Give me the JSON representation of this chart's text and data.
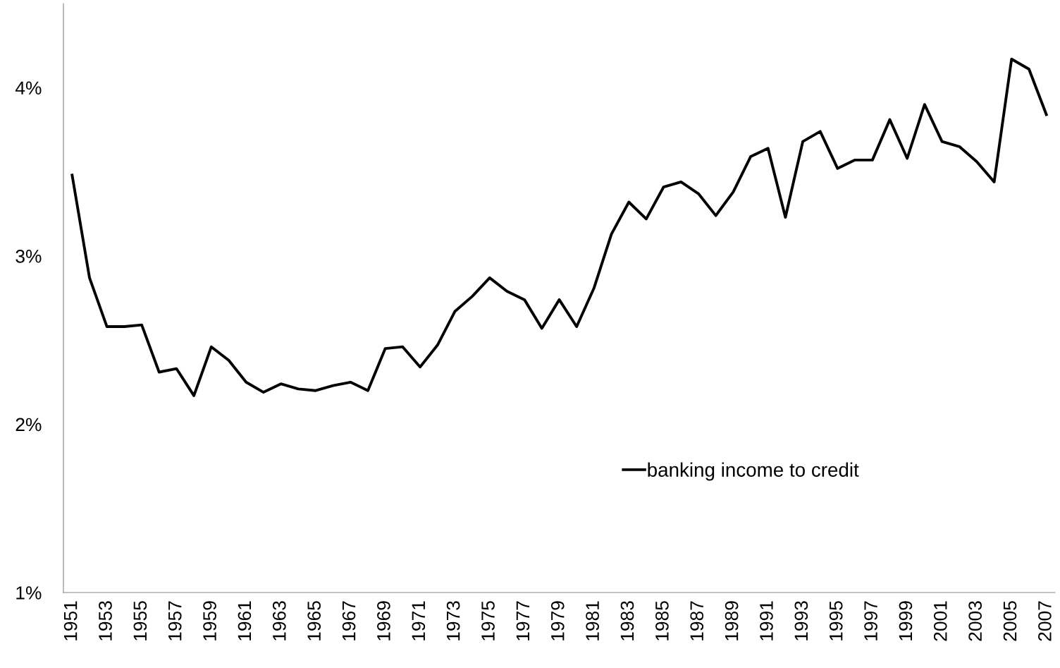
{
  "chart_data": {
    "type": "line",
    "categories": [
      "1951",
      null,
      "1953",
      null,
      "1955",
      null,
      "1957",
      null,
      "1959",
      null,
      "1961",
      null,
      "1963",
      null,
      "1965",
      null,
      "1967",
      null,
      "1969",
      null,
      "1971",
      null,
      "1973",
      null,
      "1975",
      null,
      "1977",
      null,
      "1979",
      null,
      "1981",
      null,
      "1983",
      null,
      "1985",
      null,
      "1987",
      null,
      "1989",
      null,
      "1991",
      null,
      "1993",
      null,
      "1995",
      null,
      "1997",
      null,
      "1999",
      null,
      "2001",
      null,
      "2003",
      null,
      "2005",
      null,
      "2007"
    ],
    "series": [
      {
        "name": "banking income to credit",
        "color": "#000000",
        "values": [
          3.48,
          2.87,
          2.58,
          2.58,
          2.59,
          2.31,
          2.33,
          2.17,
          2.46,
          2.38,
          2.25,
          2.19,
          2.24,
          2.21,
          2.2,
          2.23,
          2.25,
          2.2,
          2.45,
          2.46,
          2.34,
          2.47,
          2.67,
          2.76,
          2.87,
          2.79,
          2.74,
          2.57,
          2.74,
          2.58,
          2.81,
          3.13,
          3.32,
          3.22,
          3.41,
          3.44,
          3.37,
          3.24,
          3.38,
          3.59,
          3.64,
          3.23,
          3.68,
          3.74,
          3.52,
          3.57,
          3.57,
          3.81,
          3.58,
          3.9,
          3.68,
          3.65,
          3.56,
          3.44,
          4.17,
          4.11,
          3.84
        ]
      }
    ],
    "ylim": [
      1,
      4.5
    ],
    "yticks": [
      {
        "value": 1,
        "label": "1%"
      },
      {
        "value": 2,
        "label": "2%"
      },
      {
        "value": 3,
        "label": "3%"
      },
      {
        "value": 4,
        "label": "4%"
      }
    ],
    "legend": "bottom right",
    "grid": false,
    "marker": "none",
    "line_style": "solid"
  }
}
